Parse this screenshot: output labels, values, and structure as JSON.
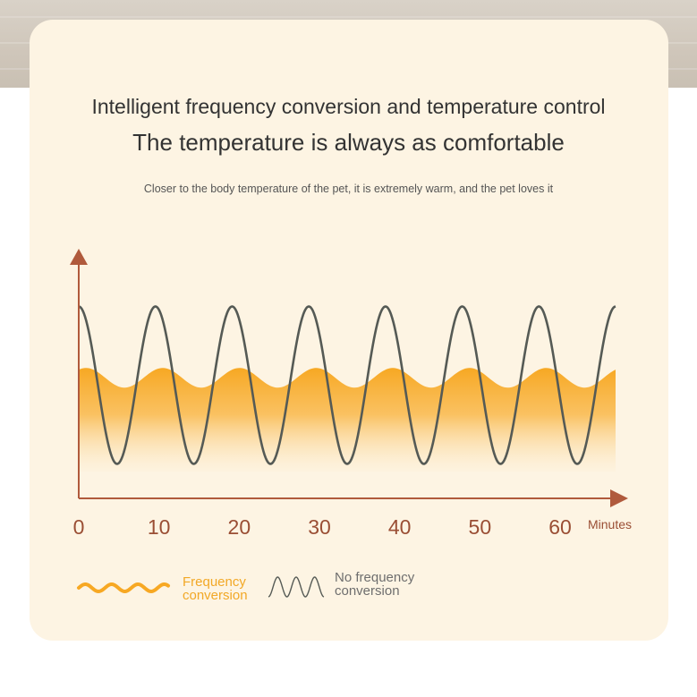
{
  "heading": {
    "line1": "Intelligent frequency conversion and temperature control",
    "line2": "The temperature is always as comfortable",
    "subtitle": "Closer to the body temperature of the pet, it is extremely warm, and the pet loves it"
  },
  "legend": {
    "frequency_line1": "Frequency",
    "frequency_line2": "conversion",
    "no_frequency_line1": "No frequency",
    "no_frequency_line2": "conversion"
  },
  "colors": {
    "axis": "#b05a3c",
    "tick_label": "#9a4e34",
    "frequency": "#f7a823",
    "no_frequency": "#555a55",
    "card": "#fdf4e3"
  },
  "chart_data": {
    "type": "line",
    "x_unit": "Minutes",
    "x_ticks": [
      0,
      10,
      20,
      30,
      40,
      50,
      60
    ],
    "xlim": [
      0,
      66
    ],
    "series": [
      {
        "name": "No frequency conversion",
        "style": "sine",
        "cycles": 7,
        "level": 0.46,
        "amplitude": 0.32,
        "color": "#555a55"
      },
      {
        "name": "Frequency conversion",
        "style": "filled-wave",
        "cycles": 7,
        "level": 0.49,
        "amplitude": 0.04,
        "color": "#f7a823"
      }
    ]
  }
}
